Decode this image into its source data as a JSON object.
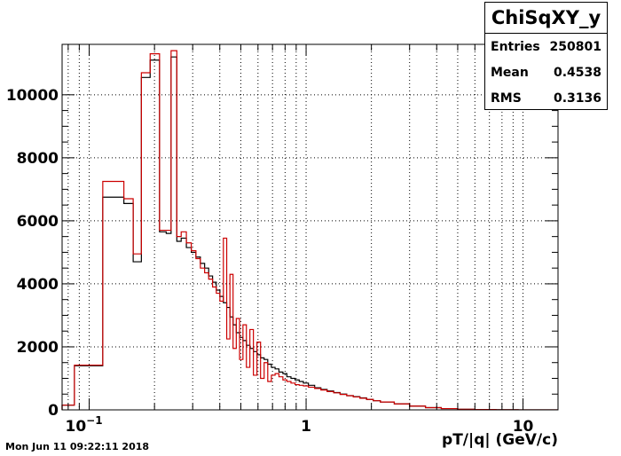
{
  "timestamp": "Mon Jun 11 09:22:11 2018",
  "stats": {
    "title": "ChiSqXY_y",
    "rows": [
      {
        "label": "Entries",
        "value": "250801"
      },
      {
        "label": "Mean",
        "value": "0.4538"
      },
      {
        "label": "RMS",
        "value": "0.3136"
      }
    ]
  },
  "chart_data": {
    "type": "histogram",
    "x_scale": "log",
    "xlim": [
      0.075,
      14.5
    ],
    "ylim": [
      0,
      11600
    ],
    "grid": true,
    "xlabel": "pT/|q| (GeV/c)",
    "ylabel": "",
    "x_tick_labels": [
      {
        "value": 0.1,
        "base": "10",
        "exp": "−1"
      },
      {
        "value": 1,
        "base": "1",
        "exp": ""
      },
      {
        "value": 10,
        "base": "10",
        "exp": ""
      }
    ],
    "y_ticks": [
      0,
      2000,
      4000,
      6000,
      8000,
      10000
    ],
    "y_tick_labels": [
      "0",
      "2000",
      "4000",
      "6000",
      "8000",
      "10000"
    ],
    "series": [
      {
        "color": "#000000",
        "edges": [
          0.075,
          0.0855,
          0.1155,
          0.1445,
          0.1595,
          0.174,
          0.191,
          0.211,
          0.2265,
          0.2385,
          0.2535,
          0.2655,
          0.2805,
          0.2955,
          0.3105,
          0.3255,
          0.3405,
          0.3555,
          0.3705,
          0.3855,
          0.4005,
          0.4155,
          0.4305,
          0.4455,
          0.4605,
          0.4765,
          0.4935,
          0.5115,
          0.5305,
          0.5505,
          0.5715,
          0.5935,
          0.6165,
          0.6405,
          0.6655,
          0.6915,
          0.7195,
          0.7495,
          0.7815,
          0.8155,
          0.8515,
          0.8895,
          0.9295,
          0.9715,
          1.025,
          1.095,
          1.17,
          1.25,
          1.34,
          1.435,
          1.54,
          1.65,
          1.77,
          1.9,
          2.04,
          2.2,
          2.55,
          3.0,
          3.55,
          4.2,
          5.0,
          6.0,
          7.5,
          9.5,
          14.5
        ],
        "values": [
          150,
          1400,
          6750,
          6550,
          4700,
          10550,
          11100,
          5650,
          5600,
          11200,
          5350,
          5450,
          5150,
          5000,
          4850,
          4650,
          4500,
          4250,
          4050,
          3800,
          3600,
          3400,
          3250,
          2950,
          2700,
          2450,
          2300,
          2200,
          2050,
          1950,
          1850,
          1750,
          1650,
          1600,
          1450,
          1350,
          1300,
          1200,
          1150,
          1050,
          1000,
          950,
          900,
          850,
          780,
          700,
          650,
          600,
          550,
          500,
          450,
          420,
          380,
          330,
          290,
          250,
          190,
          120,
          70,
          40,
          20,
          10,
          5,
          2
        ]
      },
      {
        "color": "#cc0000",
        "edges": [
          0.075,
          0.0855,
          0.1155,
          0.1445,
          0.1595,
          0.174,
          0.191,
          0.211,
          0.2265,
          0.2385,
          0.2535,
          0.2655,
          0.2805,
          0.2955,
          0.3105,
          0.3255,
          0.3405,
          0.3555,
          0.3705,
          0.3855,
          0.4005,
          0.4155,
          0.4305,
          0.4455,
          0.4605,
          0.4765,
          0.4935,
          0.5115,
          0.5305,
          0.5505,
          0.5715,
          0.5935,
          0.6165,
          0.6405,
          0.6655,
          0.6915,
          0.7195,
          0.7495,
          0.7815,
          0.8155,
          0.8515,
          0.8895,
          0.9295,
          0.9715,
          1.025,
          1.095,
          1.17,
          1.25,
          1.34,
          1.435,
          1.54,
          1.65,
          1.77,
          1.9,
          2.04,
          2.2,
          2.55,
          3.0,
          3.55,
          4.2,
          5.0,
          6.0,
          7.5,
          9.5,
          14.5
        ],
        "values": [
          150,
          1420,
          7250,
          6700,
          4950,
          10700,
          11300,
          5700,
          5700,
          11400,
          5500,
          5650,
          5300,
          5050,
          4800,
          4500,
          4350,
          4150,
          3900,
          3700,
          3450,
          5450,
          2250,
          4300,
          1950,
          2900,
          1600,
          2700,
          1350,
          2550,
          1100,
          2150,
          1000,
          1500,
          900,
          1100,
          1150,
          1050,
          950,
          900,
          850,
          800,
          780,
          760,
          720,
          680,
          630,
          580,
          540,
          490,
          450,
          410,
          370,
          330,
          290,
          250,
          190,
          120,
          70,
          40,
          20,
          10,
          5,
          2
        ]
      }
    ]
  }
}
